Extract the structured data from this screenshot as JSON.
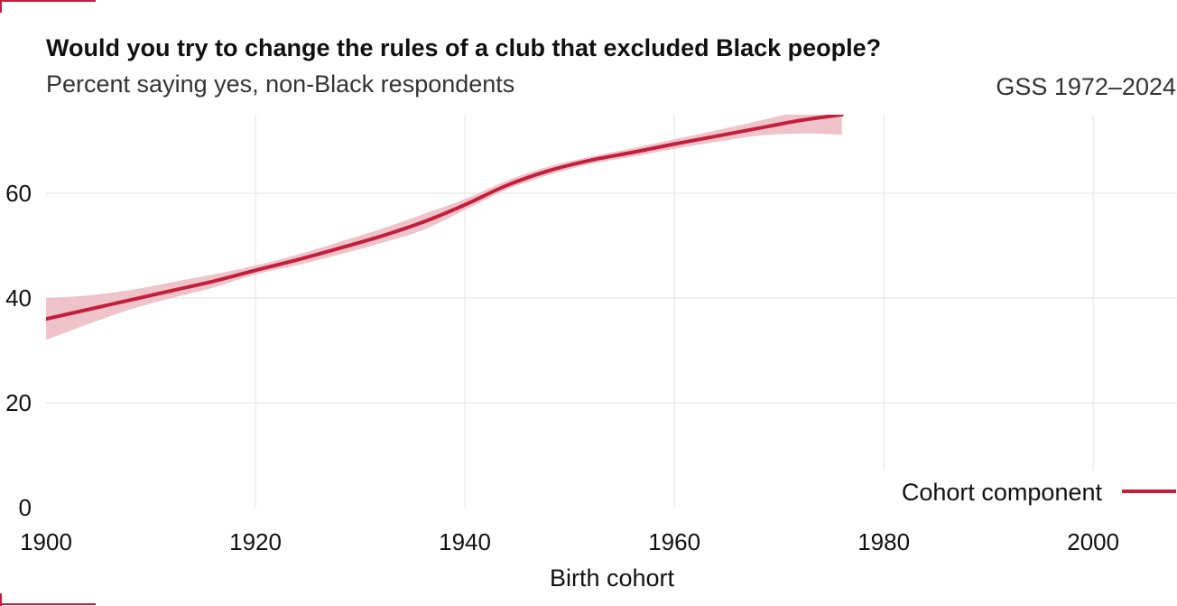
{
  "colors": {
    "accent": "#c41e3a",
    "band": "#eec3ca",
    "grid": "#e3e3e3"
  },
  "chart_data": {
    "type": "line",
    "title": "Would you try to change the rules of a club that excluded Black people?",
    "subtitle": "Percent saying yes, non-Black respondents",
    "source": "GSS 1972–2024",
    "xlabel": "Birth cohort",
    "ylabel": "",
    "xlim": [
      1900,
      2008
    ],
    "ylim": [
      0,
      75
    ],
    "x_ticks": [
      "1900",
      "1920",
      "1940",
      "1960",
      "1980",
      "2000"
    ],
    "y_ticks": [
      "0",
      "20",
      "40",
      "60"
    ],
    "grid": true,
    "legend_position": "bottom-right",
    "series": [
      {
        "name": "Cohort component",
        "x": [
          1900,
          1904,
          1908,
          1912,
          1916,
          1920,
          1924,
          1928,
          1932,
          1936,
          1940,
          1944,
          1948,
          1952,
          1956,
          1960,
          1964,
          1968,
          1972,
          1976
        ],
        "y": [
          36.0,
          37.8,
          39.6,
          41.4,
          43.2,
          45.3,
          47.3,
          49.5,
          51.8,
          54.5,
          57.8,
          61.5,
          64.3,
          66.3,
          67.8,
          69.4,
          70.9,
          72.4,
          73.9,
          75.0
        ],
        "lower": [
          32.0,
          35.0,
          37.8,
          40.0,
          42.0,
          44.5,
          46.3,
          48.3,
          50.5,
          53.0,
          56.8,
          60.7,
          63.5,
          65.6,
          67.0,
          68.5,
          69.8,
          71.0,
          71.4,
          71.2
        ],
        "upper": [
          40.0,
          40.5,
          41.5,
          43.0,
          44.5,
          46.2,
          48.3,
          50.7,
          53.2,
          56.0,
          58.9,
          62.4,
          65.1,
          67.0,
          68.6,
          70.3,
          72.0,
          73.8,
          75.6,
          76.6
        ]
      }
    ]
  }
}
